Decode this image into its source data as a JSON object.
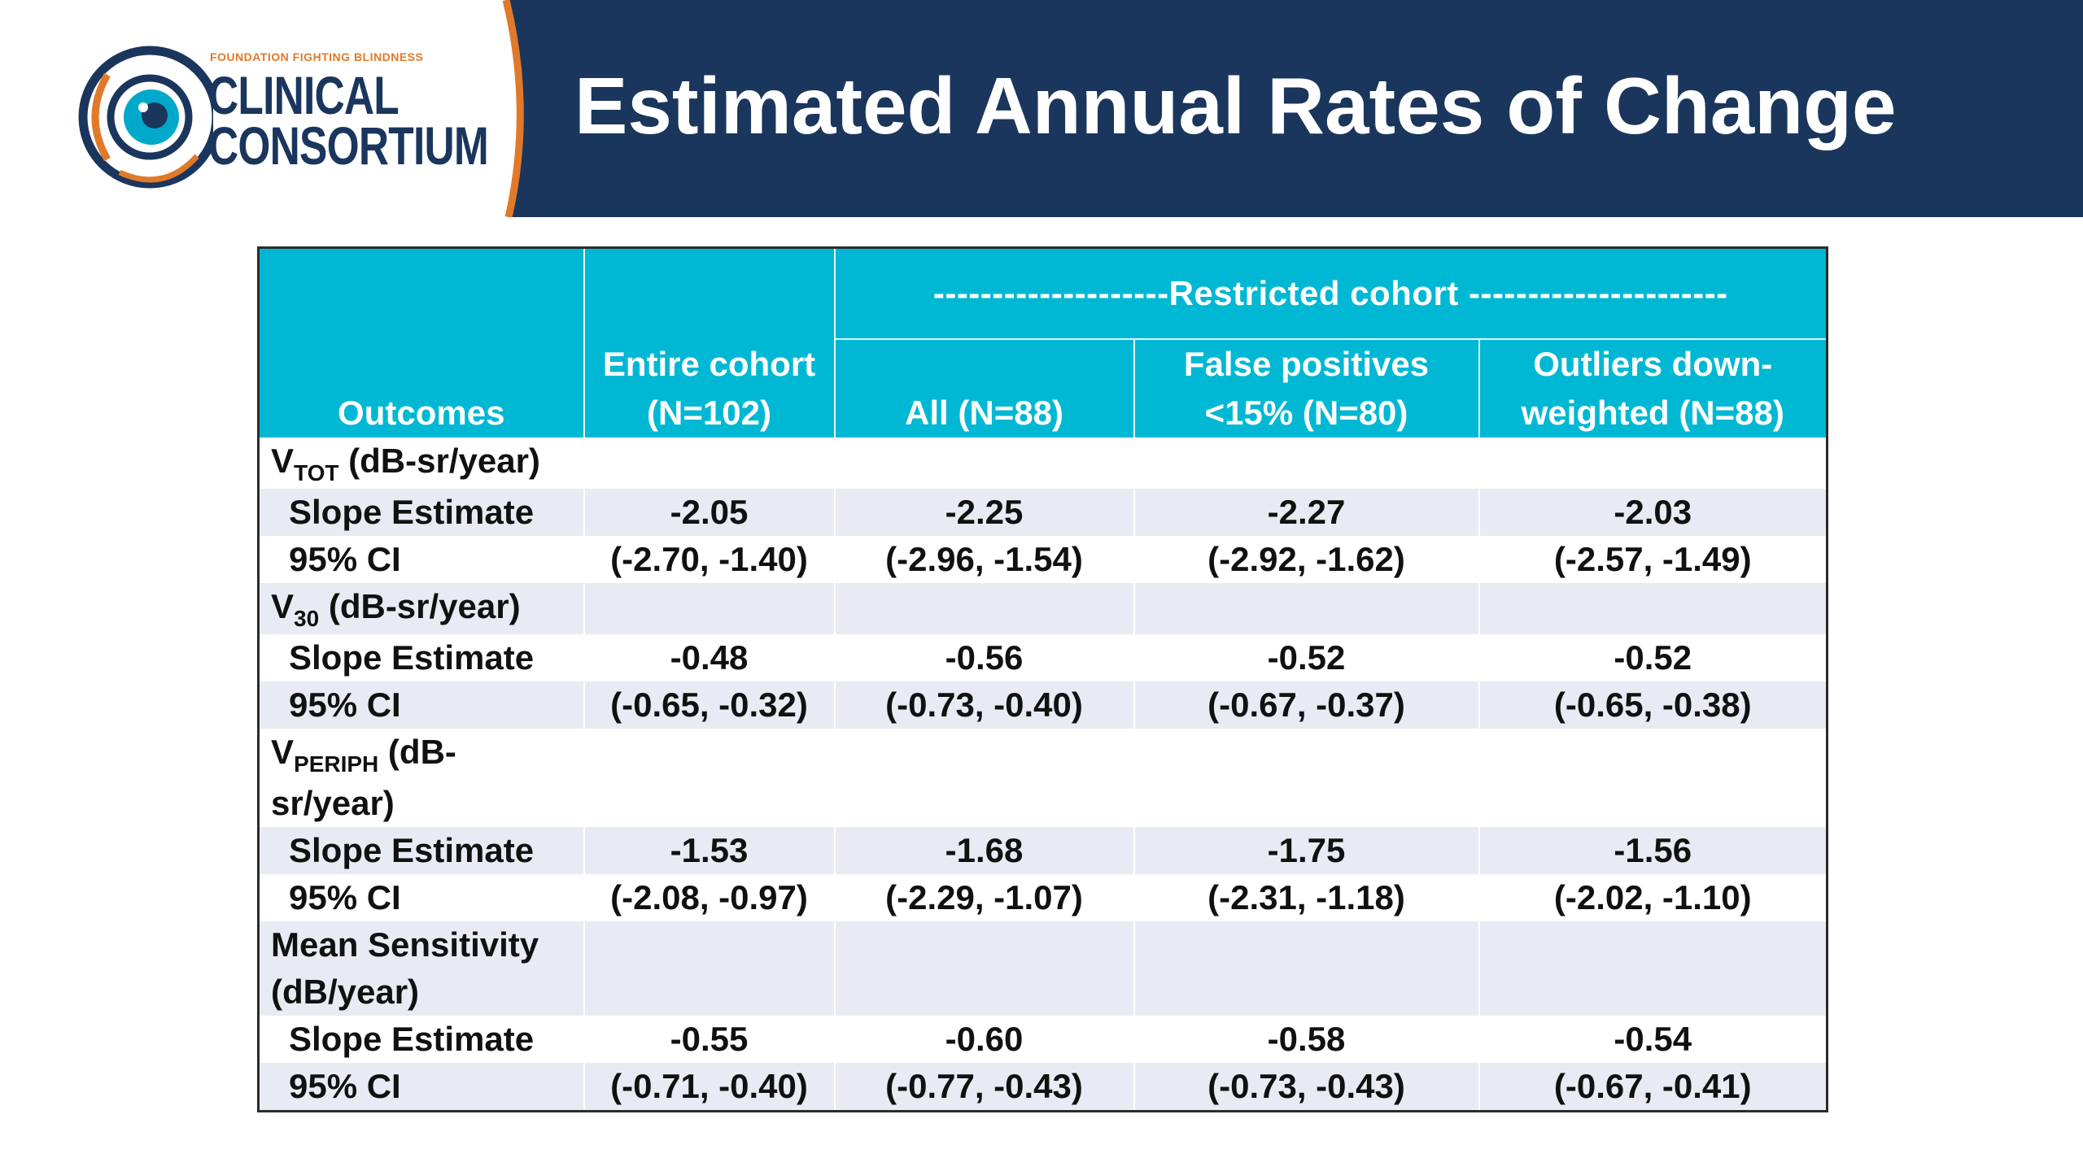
{
  "header": {
    "title": "Estimated Annual Rates of Change",
    "logo_small": "FOUNDATION FIGHTING BLINDNESS",
    "logo_line1": "CLINICAL",
    "logo_line2": "CONSORTIUM"
  },
  "table": {
    "group_header": "--------------------Restricted cohort ----------------------",
    "columns": {
      "outcomes": "Outcomes",
      "entire_1": "Entire cohort",
      "entire_2": "(N=102)",
      "all": "All (N=88)",
      "fp_1": "False positives",
      "fp_2": "<15% (N=80)",
      "out_1": "Outliers down-",
      "out_2": "weighted (N=88)"
    },
    "sections": [
      {
        "label_main": "V",
        "label_sub": "TOT",
        "label_rest": " (dB-sr/year)",
        "slope_label": "Slope Estimate",
        "ci_label": "95% CI",
        "slope": [
          "-2.05",
          "-2.25",
          "-2.27",
          "-2.03"
        ],
        "ci": [
          "(-2.70, -1.40)",
          "(-2.96, -1.54)",
          "(-2.92, -1.62)",
          "(-2.57, -1.49)"
        ]
      },
      {
        "label_main": "V",
        "label_sub": "30",
        "label_rest": " (dB-sr/year)",
        "slope_label": "Slope Estimate",
        "ci_label": "95% CI",
        "slope": [
          "-0.48",
          "-0.56",
          "-0.52",
          "-0.52"
        ],
        "ci": [
          "(-0.65, -0.32)",
          "(-0.73, -0.40)",
          "(-0.67, -0.37)",
          "(-0.65, -0.38)"
        ]
      },
      {
        "label_main": "V",
        "label_sub": "PERIPH",
        "label_rest": " (dB-",
        "label_line2": "sr/year)",
        "slope_label": "Slope Estimate",
        "ci_label": "95% CI",
        "slope": [
          "-1.53",
          "-1.68",
          "-1.75",
          "-1.56"
        ],
        "ci": [
          "(-2.08, -0.97)",
          "(-2.29, -1.07)",
          "(-2.31, -1.18)",
          "(-2.02, -1.10)"
        ]
      },
      {
        "label_line1": "Mean Sensitivity",
        "label_line2": "(dB/year)",
        "slope_label": "Slope Estimate",
        "ci_label": "95% CI",
        "slope": [
          "-0.55",
          "-0.60",
          "-0.58",
          "-0.54"
        ],
        "ci": [
          "(-0.71, -0.40)",
          "(-0.77, -0.43)",
          "(-0.73, -0.43)",
          "(-0.67, -0.41)"
        ]
      }
    ]
  },
  "colors": {
    "header_bg": "#1b365d",
    "table_header_bg": "#00b8d4",
    "logo_orange": "#e07a2a",
    "band_gray": "#e9ebf4"
  }
}
